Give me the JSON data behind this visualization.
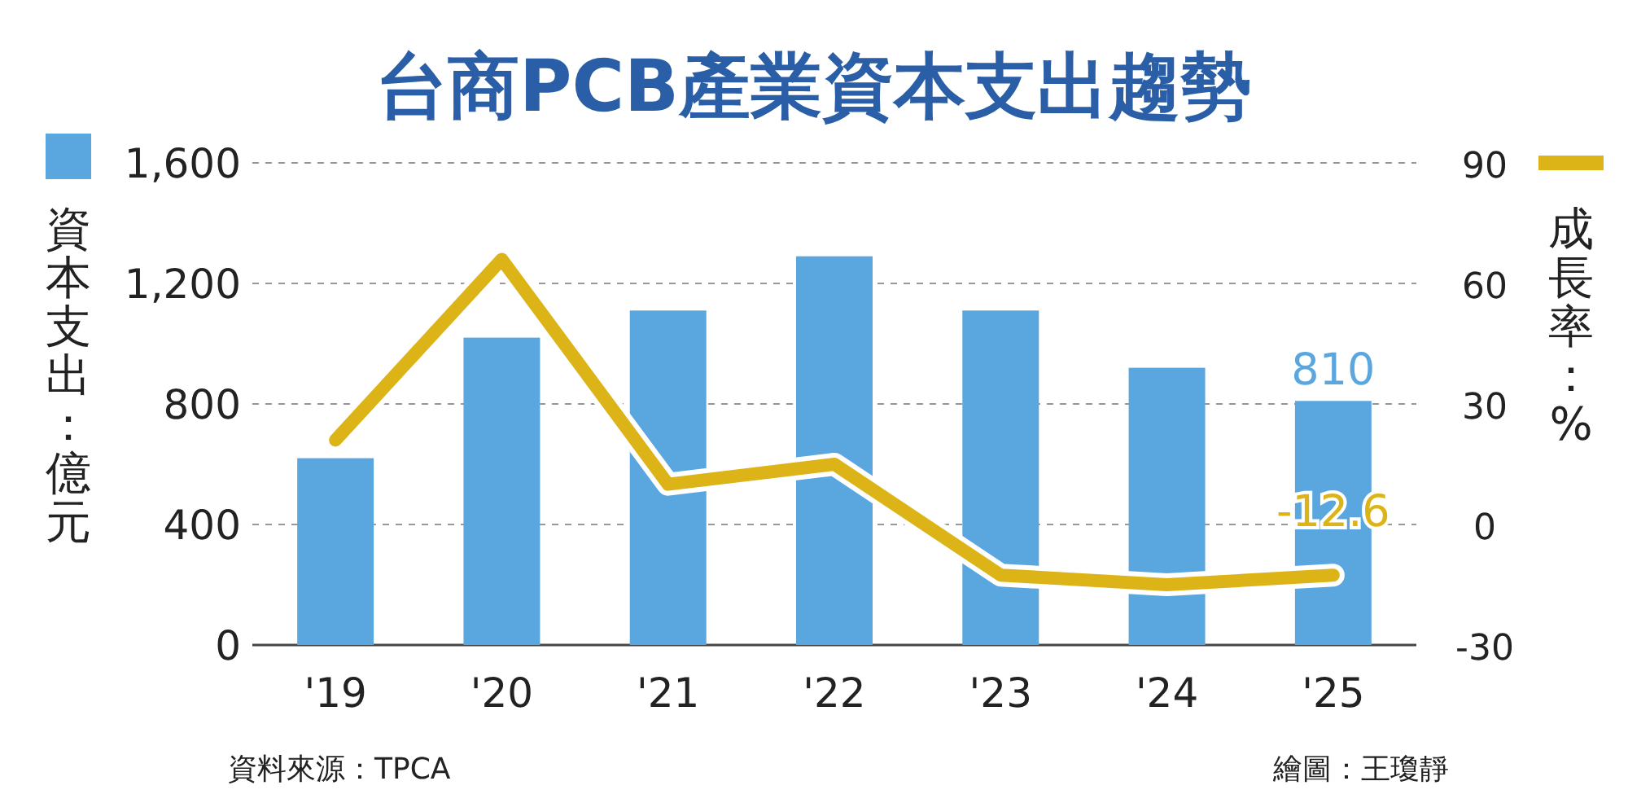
{
  "chart_data": {
    "type": "bar",
    "title": "台商PCB產業資本支出趨勢",
    "ylabel": "資本支出：億元",
    "y2label": "成長率：%",
    "categories": [
      "'19",
      "'20",
      "'21",
      "'22",
      "'23",
      "'24",
      "'25"
    ],
    "series": [
      {
        "color": "#5aa7e0",
        "values": [
          620,
          1020,
          1110,
          1290,
          1110,
          920,
          810
        ],
        "value_labels": [
          null,
          null,
          null,
          null,
          null,
          null,
          "810"
        ]
      },
      {
        "type": "line",
        "axis": "y2",
        "color": "#dcb418",
        "values": [
          21,
          66,
          10,
          15,
          -12.6,
          -15,
          -12.6
        ],
        "value_labels": [
          null,
          null,
          null,
          null,
          null,
          null,
          "-12.6"
        ]
      }
    ],
    "ylim": [
      0,
      1600
    ],
    "yticks": [
      0,
      400,
      800,
      {
        "value": 1200,
        "label": "1,200"
      },
      {
        "value": 1600,
        "label": "1,600"
      }
    ],
    "y2lim": [
      -30,
      90
    ],
    "y2ticks": [
      {
        "value": -30,
        "label": "-30"
      },
      0,
      30,
      60,
      90
    ],
    "grid": "y",
    "annotations": [
      "資料來源：TPCA",
      "繪圖：王瓊靜"
    ]
  }
}
